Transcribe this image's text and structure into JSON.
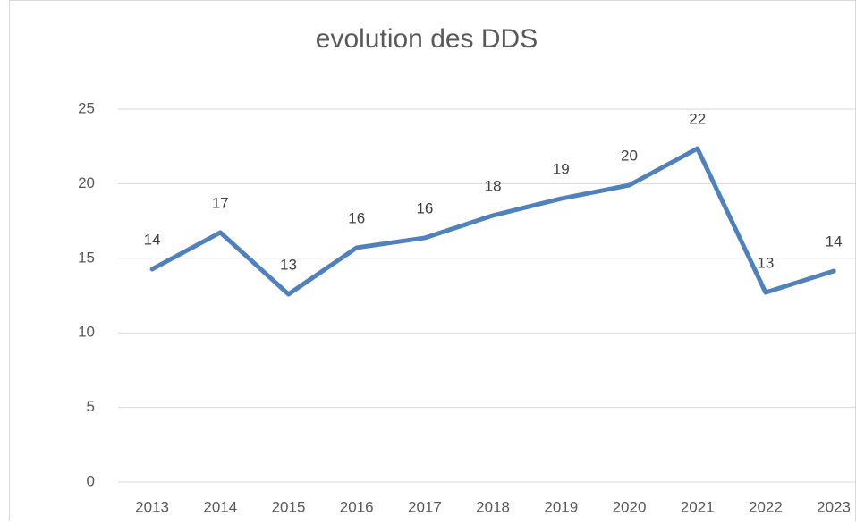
{
  "chart_data": {
    "type": "line",
    "title": "evolution des DDS",
    "categories": [
      "2013",
      "2014",
      "2015",
      "2016",
      "2017",
      "2018",
      "2019",
      "2020",
      "2021",
      "2022",
      "2023"
    ],
    "series": [
      {
        "color": "#4f81bd",
        "values": [
          14.27,
          16.73,
          12.59,
          15.71,
          16.37,
          17.87,
          19.0,
          19.9,
          22.36,
          12.71,
          14.15
        ],
        "value_labels": [
          "14",
          "17",
          "13",
          "16",
          "16",
          "18",
          "19",
          "20",
          "22",
          "13",
          "14"
        ]
      }
    ],
    "ylim": [
      0,
      25
    ],
    "yticks": [
      0,
      5,
      10,
      15,
      20,
      25
    ],
    "grid": true
  }
}
